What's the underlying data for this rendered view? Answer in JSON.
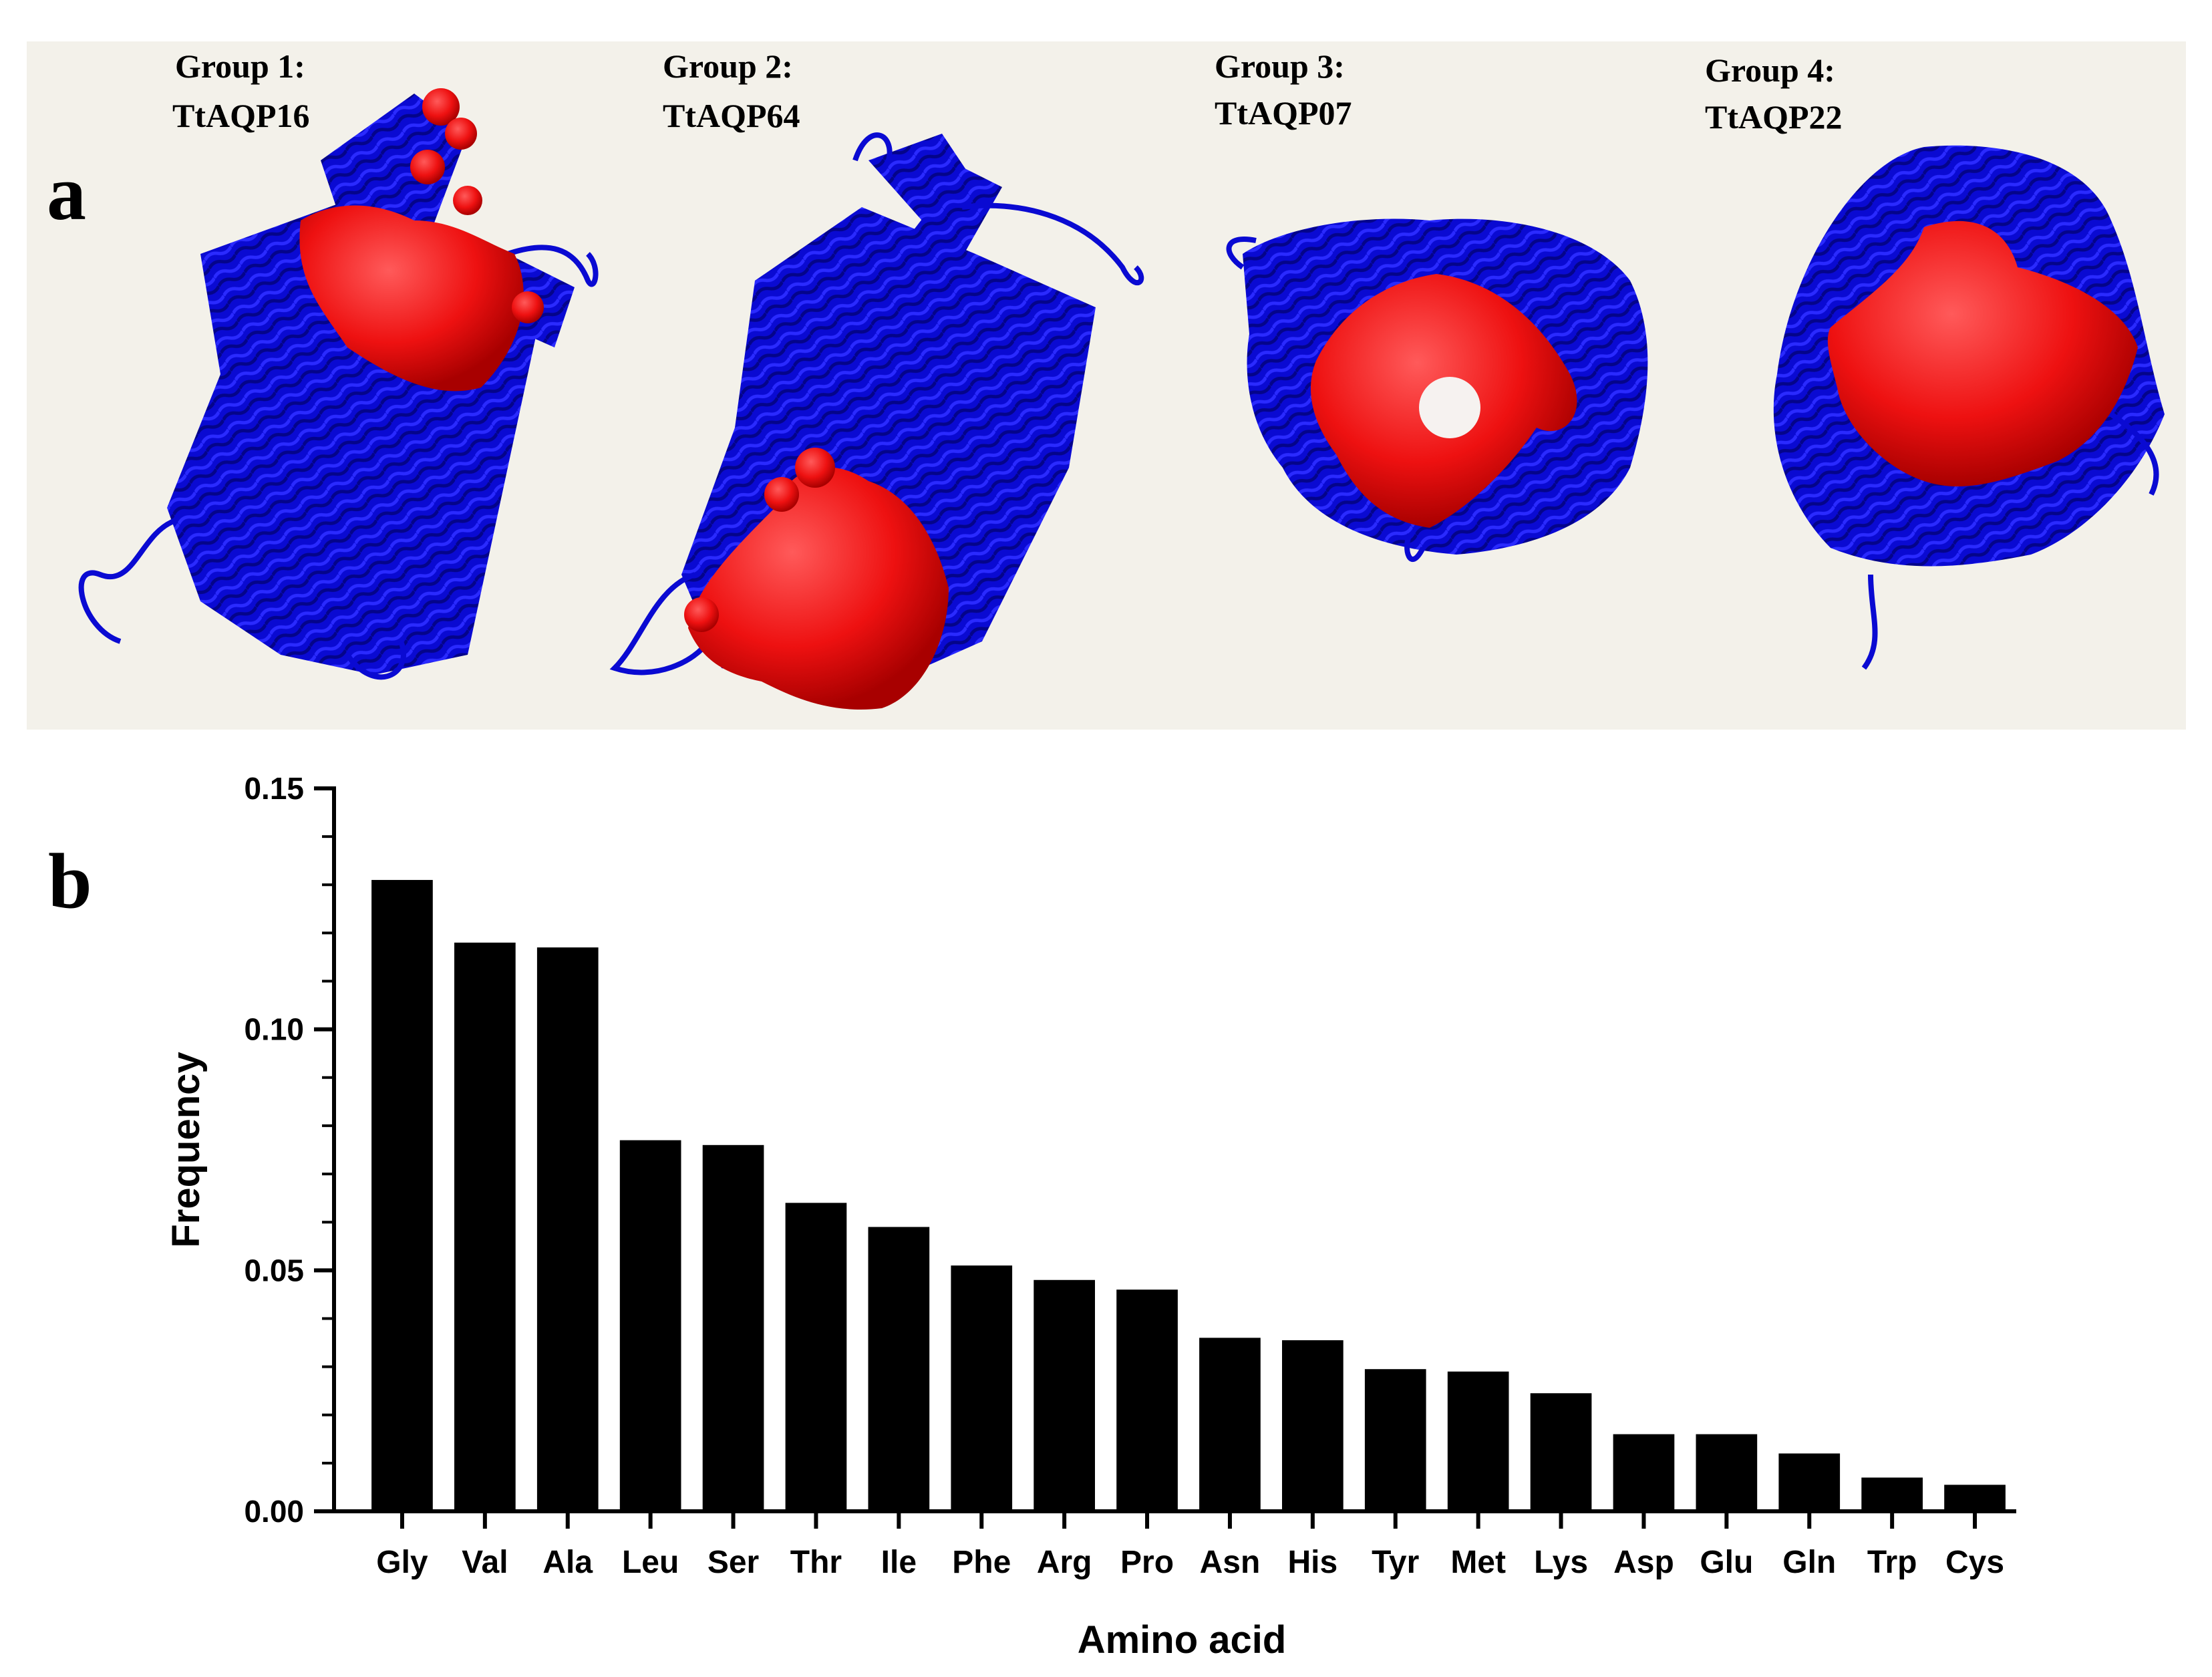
{
  "panel_a": {
    "letter": "a",
    "background_color": "#f3f1ea",
    "structure_color": "#0a0ad2",
    "pore_residue_color": "#ee1111",
    "groups": [
      {
        "title": "Group 1:",
        "protein": "TtAQP16"
      },
      {
        "title": "Group 2:",
        "protein": "TtAQP64"
      },
      {
        "title": "Group 3:",
        "protein": "TtAQP07"
      },
      {
        "title": "Group 4:",
        "protein": "TtAQP22"
      }
    ]
  },
  "panel_b": {
    "letter": "b"
  },
  "chart_data": {
    "type": "bar",
    "title": "",
    "xlabel": "Amino acid",
    "ylabel": "Frequency",
    "ylim": [
      0,
      0.15
    ],
    "yticks": [
      "0.00",
      "0.05",
      "0.10",
      "0.15"
    ],
    "ytick_values": [
      0,
      0.05,
      0.1,
      0.15
    ],
    "bar_color": "#000000",
    "categories": [
      "Gly",
      "Val",
      "Ala",
      "Leu",
      "Ser",
      "Thr",
      "Ile",
      "Phe",
      "Arg",
      "Pro",
      "Asn",
      "His",
      "Tyr",
      "Met",
      "Lys",
      "Asp",
      "Glu",
      "Gln",
      "Trp",
      "Cys"
    ],
    "values": [
      0.131,
      0.118,
      0.117,
      0.077,
      0.076,
      0.064,
      0.059,
      0.051,
      0.048,
      0.046,
      0.036,
      0.0355,
      0.0295,
      0.029,
      0.0245,
      0.016,
      0.016,
      0.012,
      0.007,
      0.0055
    ]
  }
}
